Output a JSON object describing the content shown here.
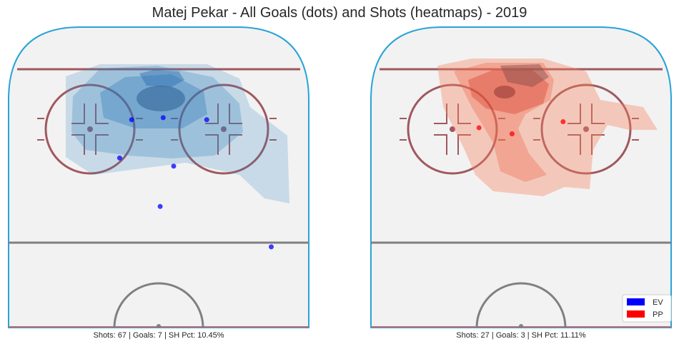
{
  "title": "Matej Pekar - All Goals (dots) and Shots (heatmaps) - 2019",
  "colors": {
    "ice": "#f2f2f2",
    "boards": "#29a3d6",
    "goal_line": "#a0585e",
    "faceoff": "#a0585e",
    "blue_line": "#808080",
    "ev": "#0000ff",
    "pp": "#ff0000"
  },
  "legend": [
    {
      "label": "EV",
      "color": "#0000ff"
    },
    {
      "label": "PP",
      "color": "#ff0000"
    }
  ],
  "chart_data": [
    {
      "type": "scatter",
      "situation": "EV",
      "stats_text": "Shots: 67 | Goals: 7 | SH Pct: 10.45%",
      "shots": 67,
      "goals": 7,
      "sh_pct": 10.45,
      "grid": false,
      "goals_xy": [
        [
          -18,
          76.5
        ],
        [
          3,
          77
        ],
        [
          32,
          76.5
        ],
        [
          -26,
          67
        ],
        [
          10,
          65
        ],
        [
          1,
          55
        ],
        [
          75,
          45
        ]
      ]
    },
    {
      "type": "scatter",
      "situation": "PP",
      "stats_text": "Shots: 27 | Goals: 3 | SH Pct: 11.11%",
      "shots": 27,
      "goals": 3,
      "sh_pct": 11.11,
      "grid": false,
      "goals_xy": [
        [
          -28,
          74.5
        ],
        [
          -6,
          73
        ],
        [
          28,
          76
        ]
      ]
    }
  ]
}
